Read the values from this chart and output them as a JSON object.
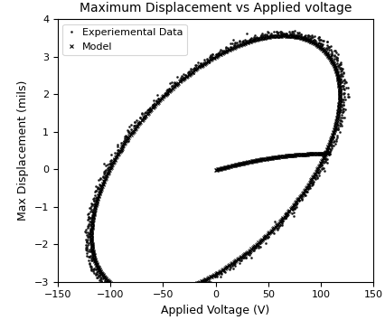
{
  "title": "Maximum Displacement vs Applied voltage",
  "xlabel": "Applied Voltage (V)",
  "ylabel": "Max Displacement (mils)",
  "xlim": [
    -150,
    150
  ],
  "ylim": [
    -3,
    4
  ],
  "legend_dot_label": "Experiemental Data",
  "legend_x_label": "Model",
  "bg_color": "#ffffff",
  "model_color": "#000000",
  "exp_color": "#111111",
  "title_fontsize": 10,
  "label_fontsize": 9,
  "tick_fontsize": 8,
  "legend_fontsize": 8
}
